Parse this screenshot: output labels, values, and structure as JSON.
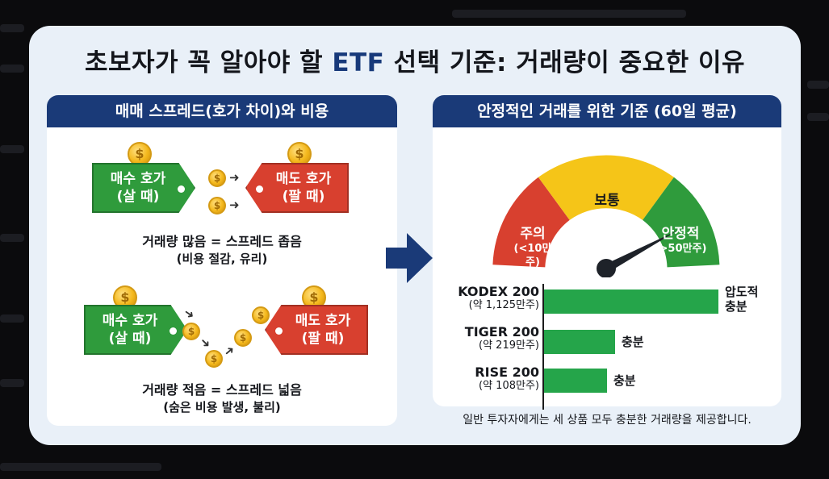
{
  "title": {
    "part1": "초보자가 꼭 알아야 할 ",
    "accent": "ETF",
    "part2": " 선택 기준: 거래량이 중요한 이유"
  },
  "left_panel": {
    "header": "매매 스프레드(호가 차이)와 비용",
    "coin_symbol": "$",
    "high_volume": {
      "buy_tag": [
        "매수 호가",
        "(살 때)"
      ],
      "sell_tag": [
        "매도 호가",
        "(팔 때)"
      ],
      "caption": "거래량 많음 = 스프레드 좁음",
      "sub_caption": "(비용 절감, 유리)"
    },
    "low_volume": {
      "buy_tag": [
        "매수 호가",
        "(살 때)"
      ],
      "sell_tag": [
        "매도 호가",
        "(팔 때)"
      ],
      "caption": "거래량 적음 = 스프레드 넓음",
      "sub_caption": "(숨은 비용 발생, 불리)"
    }
  },
  "right_panel": {
    "header": "안정적인 거래를 위한 기준 (60일 평균)",
    "gauge": {
      "caution": [
        "주의",
        "(<10만주)"
      ],
      "normal": "보통",
      "stable": [
        "안정적",
        "(>50만주)"
      ],
      "needle_zone": "stable"
    },
    "chart_data": {
      "type": "bar",
      "orientation": "horizontal",
      "unit": "만주",
      "categories": [
        "KODEX 200",
        "TIGER 200",
        "RISE 200"
      ],
      "volume_labels": [
        "(약 1,125만주)",
        "(약 219만주)",
        "(약 108만주)"
      ],
      "values": [
        1125,
        219,
        108
      ],
      "bar_tags": [
        [
          "압도적",
          "충분"
        ],
        [
          "충분"
        ],
        [
          "충분"
        ]
      ]
    },
    "footer": "일반 투자자에게는 세 상품 모두 충분한 거래량을 제공합니다."
  },
  "colors": {
    "navy": "#1a3a78",
    "buy_green": "#2f9b3c",
    "sell_red": "#d8402f",
    "gauge_red": "#d8402f",
    "gauge_yellow": "#f5c518",
    "gauge_green": "#2f9b3c",
    "bar_green": "#25a54a",
    "coin_gold": "#f4b81c"
  }
}
